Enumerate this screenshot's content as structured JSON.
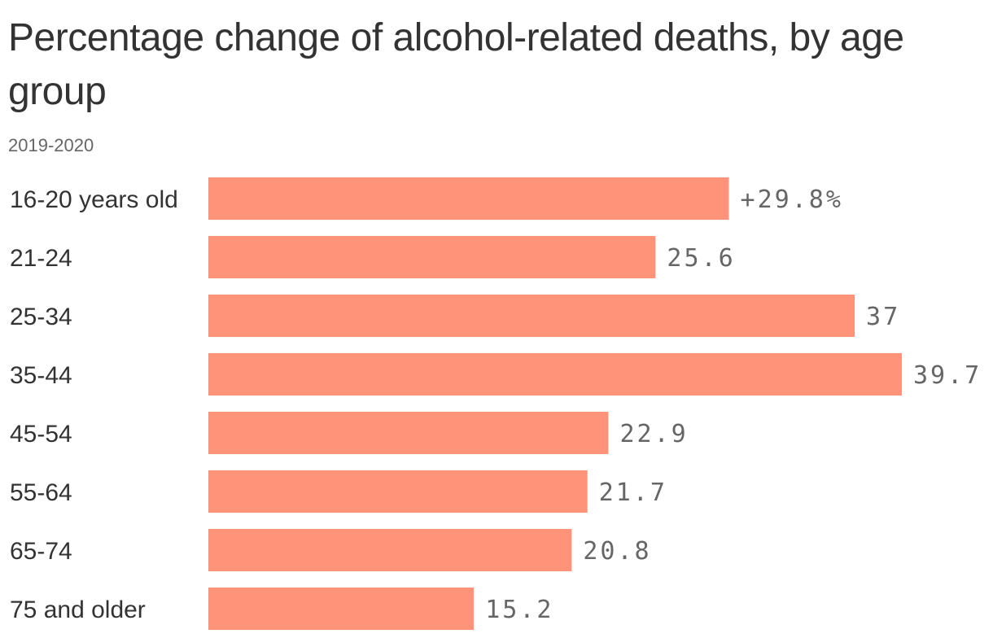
{
  "chart_data": {
    "type": "bar",
    "orientation": "horizontal",
    "title": "Percentage change of alcohol-related deaths, by age group",
    "subtitle": "2019-2020",
    "categories": [
      "16-20 years old",
      "21-24",
      "25-34",
      "35-44",
      "45-54",
      "55-64",
      "65-74",
      "75 and older"
    ],
    "values": [
      29.8,
      25.6,
      37,
      39.7,
      22.9,
      21.7,
      20.8,
      15.2
    ],
    "value_labels": [
      "+29.8%",
      "25.6",
      "37",
      "39.7",
      "22.9",
      "21.7",
      "20.8",
      "15.2"
    ],
    "xlim": [
      0,
      39.7
    ],
    "xlabel": "",
    "ylabel": "",
    "grid": false,
    "legend": "none",
    "bar_color": "#ff937a"
  }
}
